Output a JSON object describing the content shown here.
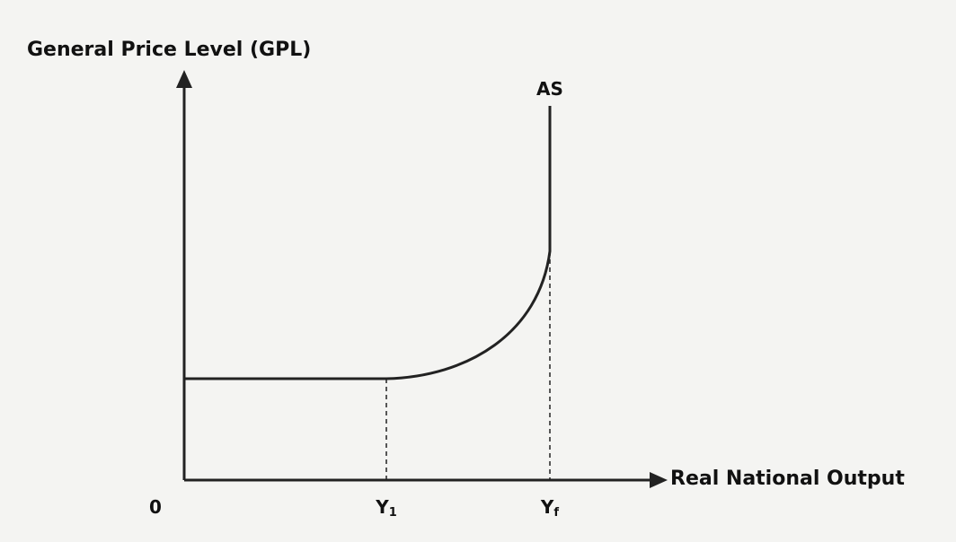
{
  "axes": {
    "y_label": "General Price Level (GPL)",
    "x_label": "Real National Output",
    "origin": "0"
  },
  "curve": {
    "label": "AS"
  },
  "points": [
    {
      "main": "Y",
      "sub": "1"
    },
    {
      "main": "Y",
      "sub": "f"
    }
  ]
}
